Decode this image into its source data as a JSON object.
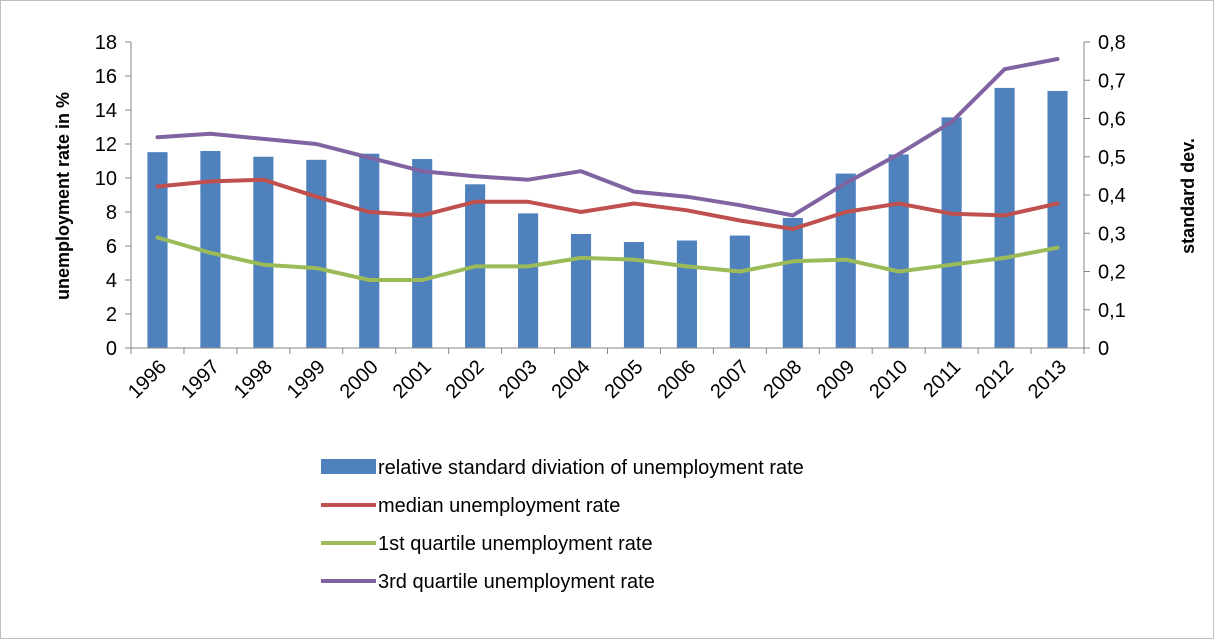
{
  "chart_data": {
    "type": "bar",
    "categories": [
      "1996",
      "1997",
      "1998",
      "1999",
      "2000",
      "2001",
      "2002",
      "2003",
      "2004",
      "2005",
      "2006",
      "2007",
      "2008",
      "2009",
      "2010",
      "2011",
      "2012",
      "2013"
    ],
    "ylabel": "unemployment rate in %",
    "y2label": "standard dev.",
    "ylim": [
      0,
      18
    ],
    "y2lim": [
      0,
      0.8
    ],
    "yticks": [
      "0",
      "2",
      "4",
      "6",
      "8",
      "10",
      "12",
      "14",
      "16",
      "18"
    ],
    "y2ticks": [
      "0",
      "0,1",
      "0,2",
      "0,3",
      "0,4",
      "0,5",
      "0,6",
      "0,7",
      "0,8"
    ],
    "legend_position": "bottom",
    "series": [
      {
        "name": "relative standard diviation of unemployment rate",
        "kind": "bar",
        "axis": "right",
        "color": "#4f81bd",
        "values": [
          0.512,
          0.515,
          0.5,
          0.492,
          0.508,
          0.494,
          0.428,
          0.352,
          0.298,
          0.277,
          0.281,
          0.294,
          0.34,
          0.456,
          0.506,
          0.603,
          0.68,
          0.672
        ]
      },
      {
        "name": "median unemployment rate",
        "kind": "line",
        "axis": "left",
        "color": "#c0504d",
        "values": [
          9.5,
          9.8,
          9.9,
          8.9,
          8.0,
          7.8,
          8.6,
          8.6,
          8.0,
          8.5,
          8.1,
          7.5,
          7.0,
          8.0,
          8.5,
          7.9,
          7.8,
          8.5
        ]
      },
      {
        "name": "1st quartile unemployment rate",
        "kind": "line",
        "axis": "left",
        "color": "#9bbb59",
        "values": [
          6.5,
          5.6,
          4.9,
          4.7,
          4.0,
          4.0,
          4.8,
          4.8,
          5.3,
          5.2,
          4.8,
          4.5,
          5.1,
          5.2,
          4.5,
          4.9,
          5.3,
          5.9
        ]
      },
      {
        "name": "3rd quartile unemployment rate",
        "kind": "line",
        "axis": "left",
        "color": "#8064a2",
        "values": [
          12.4,
          12.6,
          12.3,
          12.0,
          11.2,
          10.4,
          10.1,
          9.9,
          10.4,
          9.2,
          8.9,
          8.4,
          7.8,
          9.7,
          11.4,
          13.3,
          16.4,
          17.0
        ]
      }
    ]
  }
}
